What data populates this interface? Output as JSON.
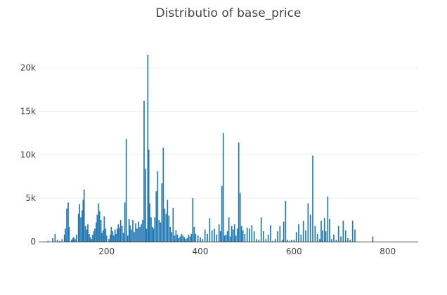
{
  "chart_data": {
    "type": "bar",
    "title": "Distributio of base_price",
    "xlabel": "",
    "ylabel": "",
    "xlim": [
      55,
      865
    ],
    "ylim": [
      0,
      22800
    ],
    "x_ticks": [
      200,
      400,
      600,
      800
    ],
    "x_tick_labels": [
      "200",
      "400",
      "600",
      "800"
    ],
    "y_ticks": [
      0,
      5000,
      10000,
      15000,
      20000
    ],
    "y_tick_labels": [
      "0",
      "5k",
      "10k",
      "15k",
      "20k"
    ],
    "grid": {
      "x": false,
      "y": true
    },
    "legend": "none",
    "bar_color": "#1f77b4",
    "bar_width": 2.5,
    "x": [
      75,
      85,
      90,
      95,
      100,
      105,
      110,
      112,
      115,
      118,
      120,
      125,
      128,
      130,
      133,
      136,
      140,
      142,
      145,
      148,
      150,
      152,
      155,
      158,
      160,
      163,
      165,
      168,
      170,
      173,
      175,
      178,
      180,
      183,
      185,
      188,
      190,
      193,
      195,
      198,
      200,
      205,
      208,
      210,
      213,
      215,
      218,
      220,
      223,
      225,
      228,
      230,
      233,
      236,
      239,
      242,
      245,
      248,
      250,
      253,
      256,
      259,
      262,
      265,
      268,
      271,
      274,
      277,
      280,
      283,
      285,
      288,
      290,
      292,
      295,
      298,
      300,
      303,
      306,
      309,
      312,
      315,
      318,
      321,
      324,
      327,
      330,
      333,
      336,
      339,
      342,
      345,
      348,
      351,
      354,
      357,
      360,
      363,
      366,
      369,
      372,
      375,
      378,
      381,
      384,
      387,
      390,
      395,
      400,
      405,
      410,
      415,
      420,
      425,
      430,
      435,
      440,
      443,
      446,
      449,
      452,
      455,
      458,
      461,
      464,
      467,
      470,
      473,
      476,
      479,
      482,
      485,
      488,
      491,
      495,
      500,
      505,
      510,
      515,
      520,
      525,
      530,
      535,
      540,
      545,
      550,
      555,
      560,
      565,
      570,
      575,
      578,
      582,
      586,
      590,
      595,
      600,
      605,
      610,
      615,
      620,
      625,
      630,
      635,
      640,
      645,
      650,
      655,
      658,
      661,
      665,
      668,
      672,
      676,
      680,
      685,
      690,
      695,
      700,
      705,
      710,
      715,
      720,
      725,
      730,
      768
    ],
    "values": [
      100,
      400,
      900,
      200,
      100,
      300,
      800,
      1500,
      3800,
      4500,
      1700,
      200,
      400,
      500,
      300,
      800,
      3200,
      4300,
      2800,
      3600,
      4800,
      6000,
      1800,
      1400,
      2000,
      900,
      500,
      300,
      800,
      1200,
      1500,
      2200,
      3100,
      4400,
      3500,
      2500,
      1000,
      1300,
      2900,
      1500,
      700,
      300,
      800,
      1700,
      1200,
      700,
      1400,
      900,
      1500,
      2000,
      1600,
      2500,
      1800,
      1000,
      4500,
      11800,
      700,
      2600,
      1900,
      1400,
      2500,
      1100,
      2100,
      1500,
      2300,
      1700,
      2000,
      2500,
      16200,
      8400,
      1500,
      21500,
      10600,
      4400,
      2800,
      1700,
      1500,
      2800,
      5800,
      8100,
      2500,
      2200,
      6700,
      10800,
      3800,
      3200,
      4800,
      3000,
      1700,
      1100,
      3900,
      700,
      1300,
      800,
      400,
      600,
      900,
      700,
      500,
      300,
      400,
      800,
      600,
      900,
      5000,
      1700,
      900,
      700,
      500,
      300,
      1400,
      900,
      2700,
      1300,
      1500,
      800,
      2000,
      1200,
      6400,
      12500,
      700,
      800,
      1200,
      2800,
      600,
      1800,
      1400,
      2000,
      700,
      1500,
      11400,
      5600,
      1800,
      1300,
      900,
      1600,
      1500,
      1900,
      1200,
      300,
      200,
      2800,
      1200,
      300,
      800,
      1900,
      100,
      300,
      1200,
      1800,
      200,
      2300,
      4700,
      200,
      100,
      200,
      200,
      1100,
      2000,
      800,
      2400,
      1300,
      4400,
      3100,
      9900,
      1800,
      900,
      300,
      2400,
      1300,
      2700,
      1200,
      5200,
      2600,
      300,
      800,
      200,
      1800,
      600,
      2400,
      1300,
      400,
      200,
      2400,
      1400,
      600
    ]
  }
}
